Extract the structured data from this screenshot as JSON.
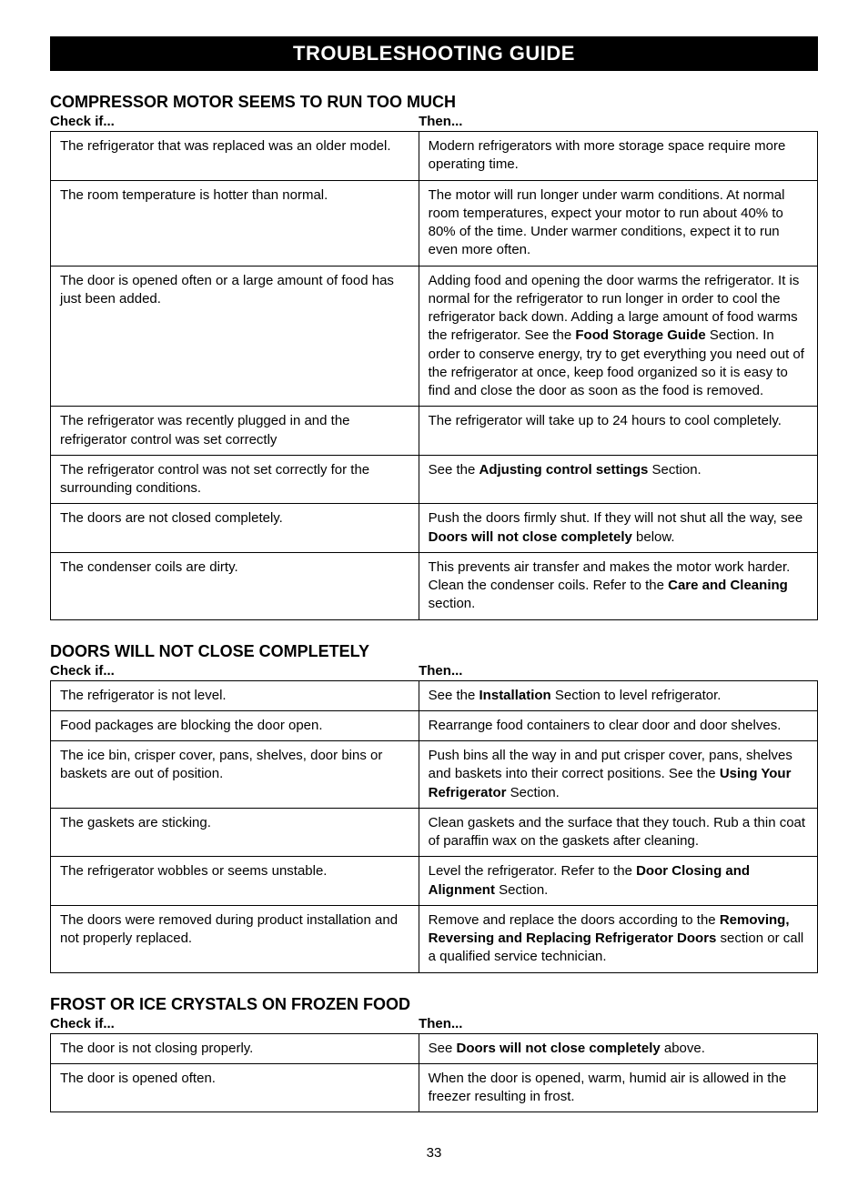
{
  "banner": "TROUBLESHOOTING GUIDE",
  "page_number": "33",
  "sections": [
    {
      "title": "COMPRESSOR MOTOR SEEMS TO RUN TOO MUCH",
      "check_label": "Check if...",
      "then_label": "Then...",
      "rows": [
        {
          "check": "The refrigerator that was replaced was an older model.",
          "then": [
            {
              "t": "Modern refrigerators with more storage space require more operating time."
            }
          ]
        },
        {
          "check": "The room temperature is hotter than normal.",
          "then": [
            {
              "t": "The motor will run longer under warm conditions. At normal room temperatures, expect your motor to run about 40% to 80% of the time. Under warmer conditions, expect it to run even more often."
            }
          ]
        },
        {
          "check": "The door is opened often or a large amount of food has just been added.",
          "then": [
            {
              "t": "Adding food and opening the door warms the refrigerator. It is normal for the refrigerator to run longer in order to cool the refrigerator back down. Adding a large amount of food warms the refrigerator. See the "
            },
            {
              "t": "Food Storage Guide",
              "b": true
            },
            {
              "t": " Section. In order to conserve energy, try to get everything you need out of the refrigerator at once, keep food organized so it is easy to find and close the door as soon as the food is removed."
            }
          ]
        },
        {
          "check": "The refrigerator was recently plugged in and the refrigerator control was set correctly",
          "then": [
            {
              "t": "The refrigerator will take up to 24 hours to cool completely."
            }
          ]
        },
        {
          "check": "The refrigerator control was not set correctly for the surrounding conditions.",
          "then": [
            {
              "t": "See the "
            },
            {
              "t": "Adjusting control settings",
              "b": true
            },
            {
              "t": " Section."
            }
          ]
        },
        {
          "check": "The doors are not closed completely.",
          "then": [
            {
              "t": "Push the doors firmly shut. If they will not shut all the way, see "
            },
            {
              "t": "Doors will not close completely",
              "b": true
            },
            {
              "t": " below."
            }
          ]
        },
        {
          "check": "The condenser coils are dirty.",
          "then": [
            {
              "t": "This prevents air transfer and makes the motor work harder. Clean the condenser coils. Refer to the "
            },
            {
              "t": "Care and Cleaning",
              "b": true
            },
            {
              "t": " section."
            }
          ]
        }
      ]
    },
    {
      "title": "DOORS WILL NOT CLOSE COMPLETELY",
      "check_label": "Check if...",
      "then_label": "Then...",
      "rows": [
        {
          "check": "The refrigerator is not level.",
          "then": [
            {
              "t": "See the "
            },
            {
              "t": "Installation",
              "b": true
            },
            {
              "t": " Section to level refrigerator."
            }
          ]
        },
        {
          "check": "Food packages are blocking the door open.",
          "then": [
            {
              "t": "Rearrange food containers to clear door and door shelves."
            }
          ]
        },
        {
          "check": "The ice bin, crisper cover, pans, shelves, door bins or baskets are out of position.",
          "then": [
            {
              "t": "Push bins all the way in and put crisper cover, pans, shelves and baskets into their correct positions. See the  "
            },
            {
              "t": "Using Your Refrigerator",
              "b": true
            },
            {
              "t": " Section."
            }
          ]
        },
        {
          "check": "The gaskets are sticking.",
          "then": [
            {
              "t": "Clean gaskets and the surface that they touch. Rub a thin coat of paraffin wax on the gaskets after cleaning."
            }
          ]
        },
        {
          "check": "The refrigerator wobbles or seems unstable.",
          "then": [
            {
              "t": "Level the refrigerator. Refer to the "
            },
            {
              "t": "Door Closing and Alignment",
              "b": true
            },
            {
              "t": " Section."
            }
          ]
        },
        {
          "check": "The doors were removed during product installation and not properly replaced.",
          "then": [
            {
              "t": "Remove and replace the doors according to the "
            },
            {
              "t": "Removing, Reversing and Replacing Refrigerator Doors",
              "b": true
            },
            {
              "t": " section or call a qualified service technician."
            }
          ]
        }
      ]
    },
    {
      "title": "FROST OR ICE CRYSTALS ON FROZEN FOOD",
      "check_label": "Check if...",
      "then_label": "Then...",
      "rows": [
        {
          "check": "The door is not closing properly.",
          "then": [
            {
              "t": "See "
            },
            {
              "t": "Doors will not close completely",
              "b": true
            },
            {
              "t": " above."
            }
          ]
        },
        {
          "check": "The door is opened often.",
          "then": [
            {
              "t": "When the door is opened, warm, humid air is allowed in the freezer resulting in frost."
            }
          ]
        }
      ]
    }
  ]
}
